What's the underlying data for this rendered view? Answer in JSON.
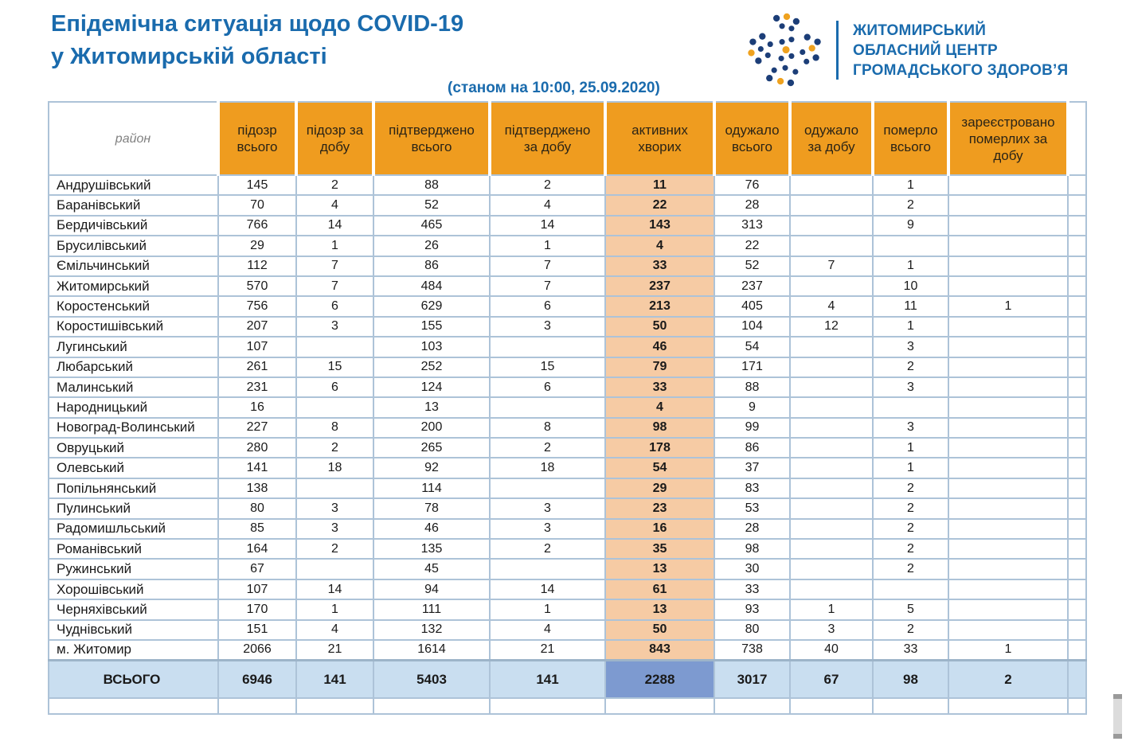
{
  "header": {
    "title_line1": "Епідемічна ситуація щодо COVID-19",
    "title_line2": "у Житомирській області",
    "subtitle": "(станом на 10:00, 25.09.2020)"
  },
  "logo": {
    "line1": "ЖИТОМИРСЬКИЙ",
    "line2": "ОБЛАСНИЙ ЦЕНТР",
    "line3": "ГРОМАДСЬКОГО ЗДОРОВ’Я"
  },
  "colors": {
    "title_blue": "#1A6BAD",
    "header_orange": "#EF9C1F",
    "active_column_peach": "#F6CBA4",
    "total_row_blue": "#C9DEF0",
    "total_active_cell_blue": "#7D9AD0",
    "grid_border": "#ADC3D8",
    "logo_navy": "#1C3E78",
    "logo_yellow": "#EFA21F"
  },
  "table": {
    "region_header": "район",
    "col_headers": [
      "підозр всього",
      "підозр за добу",
      "підтверджено всього",
      "підтверджено за добу",
      "активних хворих",
      "одужало всього",
      "одужало за добу",
      "померло всього",
      "зареєстровано померлих за добу"
    ],
    "rows": [
      {
        "name": "Андрушівський",
        "values": [
          "145",
          "2",
          "88",
          "2",
          "11",
          "76",
          "",
          "1",
          ""
        ]
      },
      {
        "name": "Баранівський",
        "values": [
          "70",
          "4",
          "52",
          "4",
          "22",
          "28",
          "",
          "2",
          ""
        ]
      },
      {
        "name": "Бердичівський",
        "values": [
          "766",
          "14",
          "465",
          "14",
          "143",
          "313",
          "",
          "9",
          ""
        ]
      },
      {
        "name": "Брусилівський",
        "values": [
          "29",
          "1",
          "26",
          "1",
          "4",
          "22",
          "",
          "",
          ""
        ]
      },
      {
        "name": "Ємільчинський",
        "values": [
          "112",
          "7",
          "86",
          "7",
          "33",
          "52",
          "7",
          "1",
          ""
        ]
      },
      {
        "name": "Житомирський",
        "values": [
          "570",
          "7",
          "484",
          "7",
          "237",
          "237",
          "",
          "10",
          ""
        ]
      },
      {
        "name": "Коростенський",
        "values": [
          "756",
          "6",
          "629",
          "6",
          "213",
          "405",
          "4",
          "11",
          "1"
        ]
      },
      {
        "name": "Коростишівський",
        "values": [
          "207",
          "3",
          "155",
          "3",
          "50",
          "104",
          "12",
          "1",
          ""
        ]
      },
      {
        "name": "Лугинський",
        "values": [
          "107",
          "",
          "103",
          "",
          "46",
          "54",
          "",
          "3",
          ""
        ]
      },
      {
        "name": "Любарський",
        "values": [
          "261",
          "15",
          "252",
          "15",
          "79",
          "171",
          "",
          "2",
          ""
        ]
      },
      {
        "name": "Малинський",
        "values": [
          "231",
          "6",
          "124",
          "6",
          "33",
          "88",
          "",
          "3",
          ""
        ]
      },
      {
        "name": "Народницький",
        "values": [
          "16",
          "",
          "13",
          "",
          "4",
          "9",
          "",
          "",
          ""
        ]
      },
      {
        "name": "Новоград-Волинський",
        "values": [
          "227",
          "8",
          "200",
          "8",
          "98",
          "99",
          "",
          "3",
          ""
        ]
      },
      {
        "name": "Овруцький",
        "values": [
          "280",
          "2",
          "265",
          "2",
          "178",
          "86",
          "",
          "1",
          ""
        ]
      },
      {
        "name": "Олевський",
        "values": [
          "141",
          "18",
          "92",
          "18",
          "54",
          "37",
          "",
          "1",
          ""
        ]
      },
      {
        "name": "Попільнянський",
        "values": [
          "138",
          "",
          "114",
          "",
          "29",
          "83",
          "",
          "2",
          ""
        ]
      },
      {
        "name": "Пулинський",
        "values": [
          "80",
          "3",
          "78",
          "3",
          "23",
          "53",
          "",
          "2",
          ""
        ]
      },
      {
        "name": "Радомишльський",
        "values": [
          "85",
          "3",
          "46",
          "3",
          "16",
          "28",
          "",
          "2",
          ""
        ]
      },
      {
        "name": "Романівський",
        "values": [
          "164",
          "2",
          "135",
          "2",
          "35",
          "98",
          "",
          "2",
          ""
        ]
      },
      {
        "name": "Ружинський",
        "values": [
          "67",
          "",
          "45",
          "",
          "13",
          "30",
          "",
          "2",
          ""
        ]
      },
      {
        "name": "Хорошівський",
        "values": [
          "107",
          "14",
          "94",
          "14",
          "61",
          "33",
          "",
          "",
          ""
        ]
      },
      {
        "name": "Черняхівський",
        "values": [
          "170",
          "1",
          "111",
          "1",
          "13",
          "93",
          "1",
          "5",
          ""
        ]
      },
      {
        "name": "Чуднівський",
        "values": [
          "151",
          "4",
          "132",
          "4",
          "50",
          "80",
          "3",
          "2",
          ""
        ]
      },
      {
        "name": "м. Житомир",
        "values": [
          "2066",
          "21",
          "1614",
          "21",
          "843",
          "738",
          "40",
          "33",
          "1"
        ]
      }
    ],
    "total": {
      "label": "ВСЬОГО",
      "values": [
        "6946",
        "141",
        "5403",
        "141",
        "2288",
        "3017",
        "67",
        "98",
        "2"
      ]
    }
  }
}
